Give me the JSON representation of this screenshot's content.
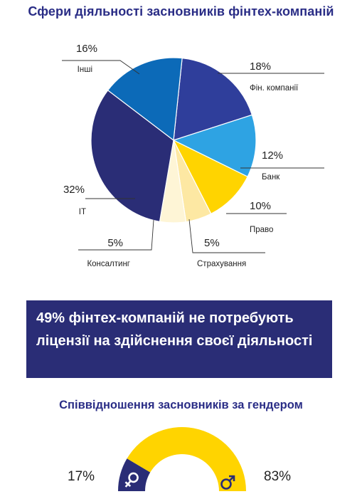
{
  "chart_data": [
    {
      "type": "pie",
      "title": "Сфери діяльності засновників фінтех-компаній",
      "slices": [
        {
          "label": "Фін. компанії",
          "value": 18,
          "value_label": "18%",
          "color": "#2f3e9b"
        },
        {
          "label": "Банк",
          "value": 12,
          "value_label": "12%",
          "color": "#2ea3e3"
        },
        {
          "label": "Право",
          "value": 10,
          "value_label": "10%",
          "color": "#ffd400"
        },
        {
          "label": "Страхування",
          "value": 5,
          "value_label": "5%",
          "color": "#fde8a3"
        },
        {
          "label": "Консалтинг",
          "value": 5,
          "value_label": "5%",
          "color": "#fef5d6"
        },
        {
          "label": "IT",
          "value": 32,
          "value_label": "32%",
          "color": "#2a2d76"
        },
        {
          "label": "Інші",
          "value": 16,
          "value_label": "16%",
          "color": "#0c6ab8"
        }
      ]
    },
    {
      "type": "pie",
      "variant": "half-donut",
      "title": "Співвідношення засновників за гендером",
      "slices": [
        {
          "label": "female-symbol",
          "value": 17,
          "value_label": "17%",
          "color": "#2a2d76"
        },
        {
          "label": "male-symbol",
          "value": 83,
          "value_label": "83%",
          "color": "#ffd400"
        }
      ]
    }
  ],
  "banner": {
    "highlight": "49%",
    "text": " фінтех-компаній не потребують ліцензії на здійснення своєї діяльності"
  }
}
